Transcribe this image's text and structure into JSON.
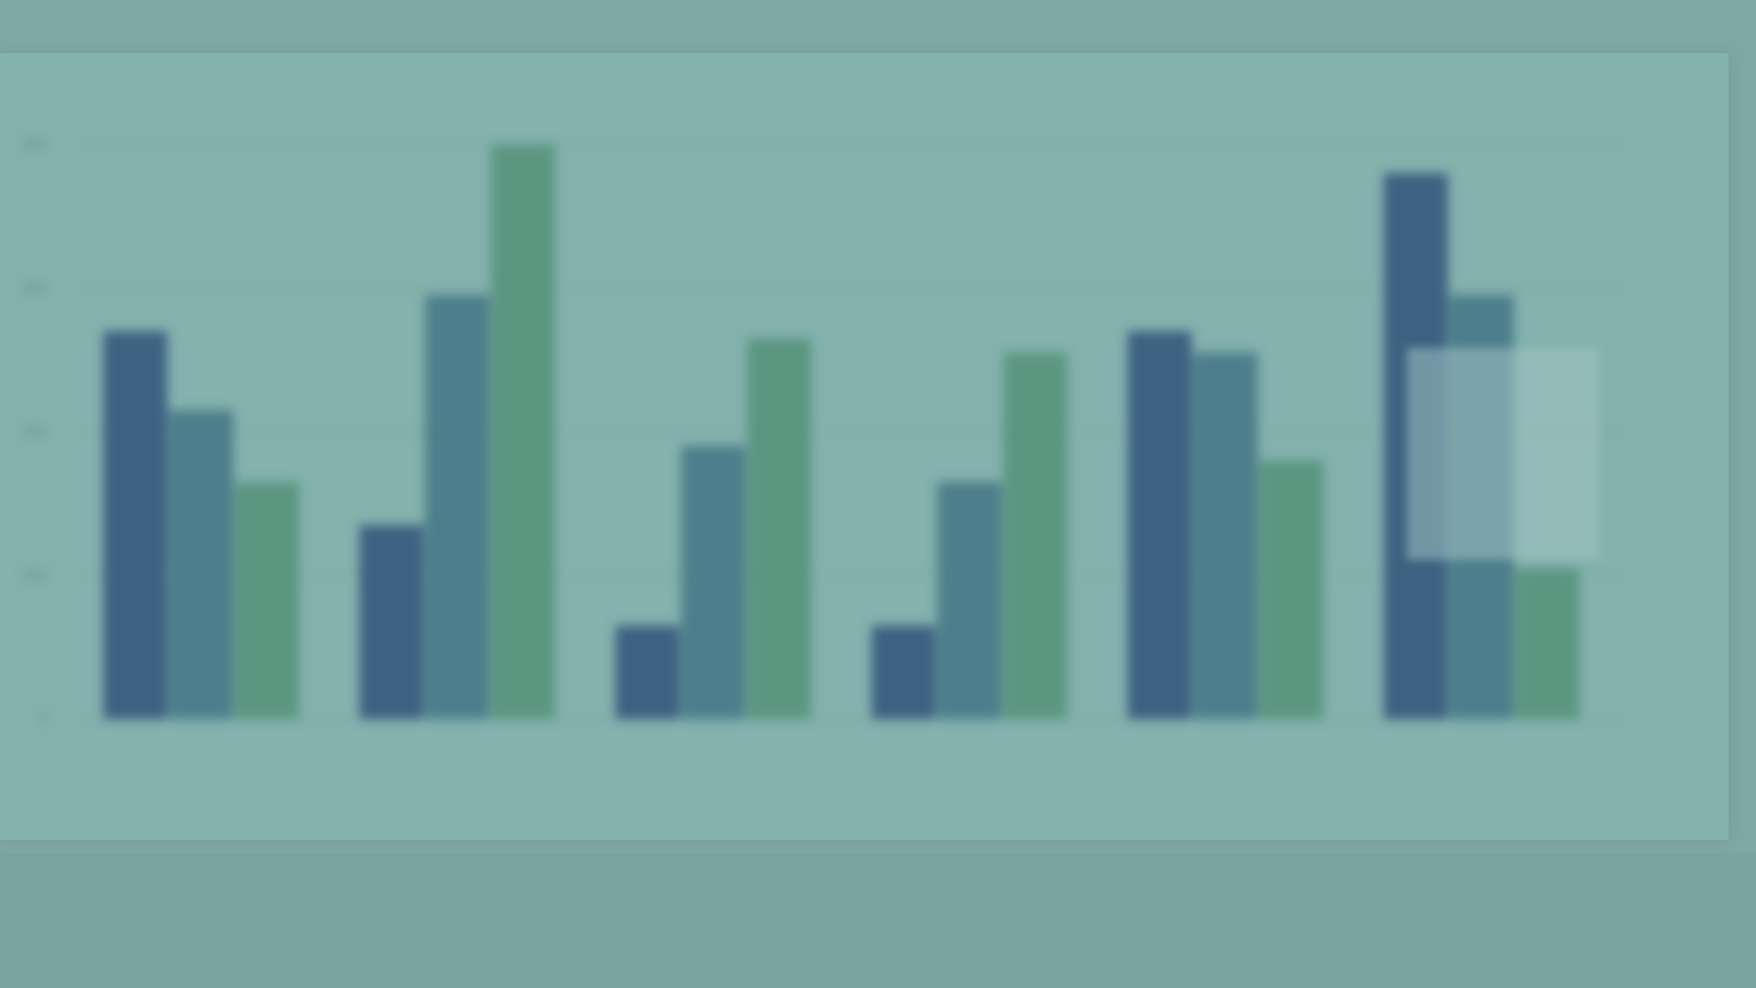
{
  "page": {
    "top_caption": "",
    "bottom_caption": ""
  },
  "tooltip": {
    "title": "",
    "lines": [
      "",
      "",
      ""
    ]
  },
  "chart_data": {
    "type": "bar",
    "title": "",
    "xlabel": "",
    "ylabel": "",
    "ylim": [
      0,
      400
    ],
    "yticks": [
      0,
      100,
      200,
      300,
      400
    ],
    "grid": true,
    "legend": "none",
    "categories": [
      "",
      "",
      "",
      "",
      "",
      ""
    ],
    "series": [
      {
        "values": [
          270,
          135,
          65,
          65,
          270,
          380
        ],
        "color": "#3d6181"
      },
      {
        "values": [
          215,
          295,
          190,
          165,
          255,
          295
        ],
        "color": "#4c7e8b"
      },
      {
        "values": [
          165,
          400,
          265,
          255,
          180,
          105
        ],
        "color": "#5b9681"
      }
    ],
    "colors": {
      "page_bg": "#7fa9a5",
      "panel_bg": "#84b2ae",
      "grid": "#7ba29f",
      "axis_text": "#6a918e"
    }
  }
}
